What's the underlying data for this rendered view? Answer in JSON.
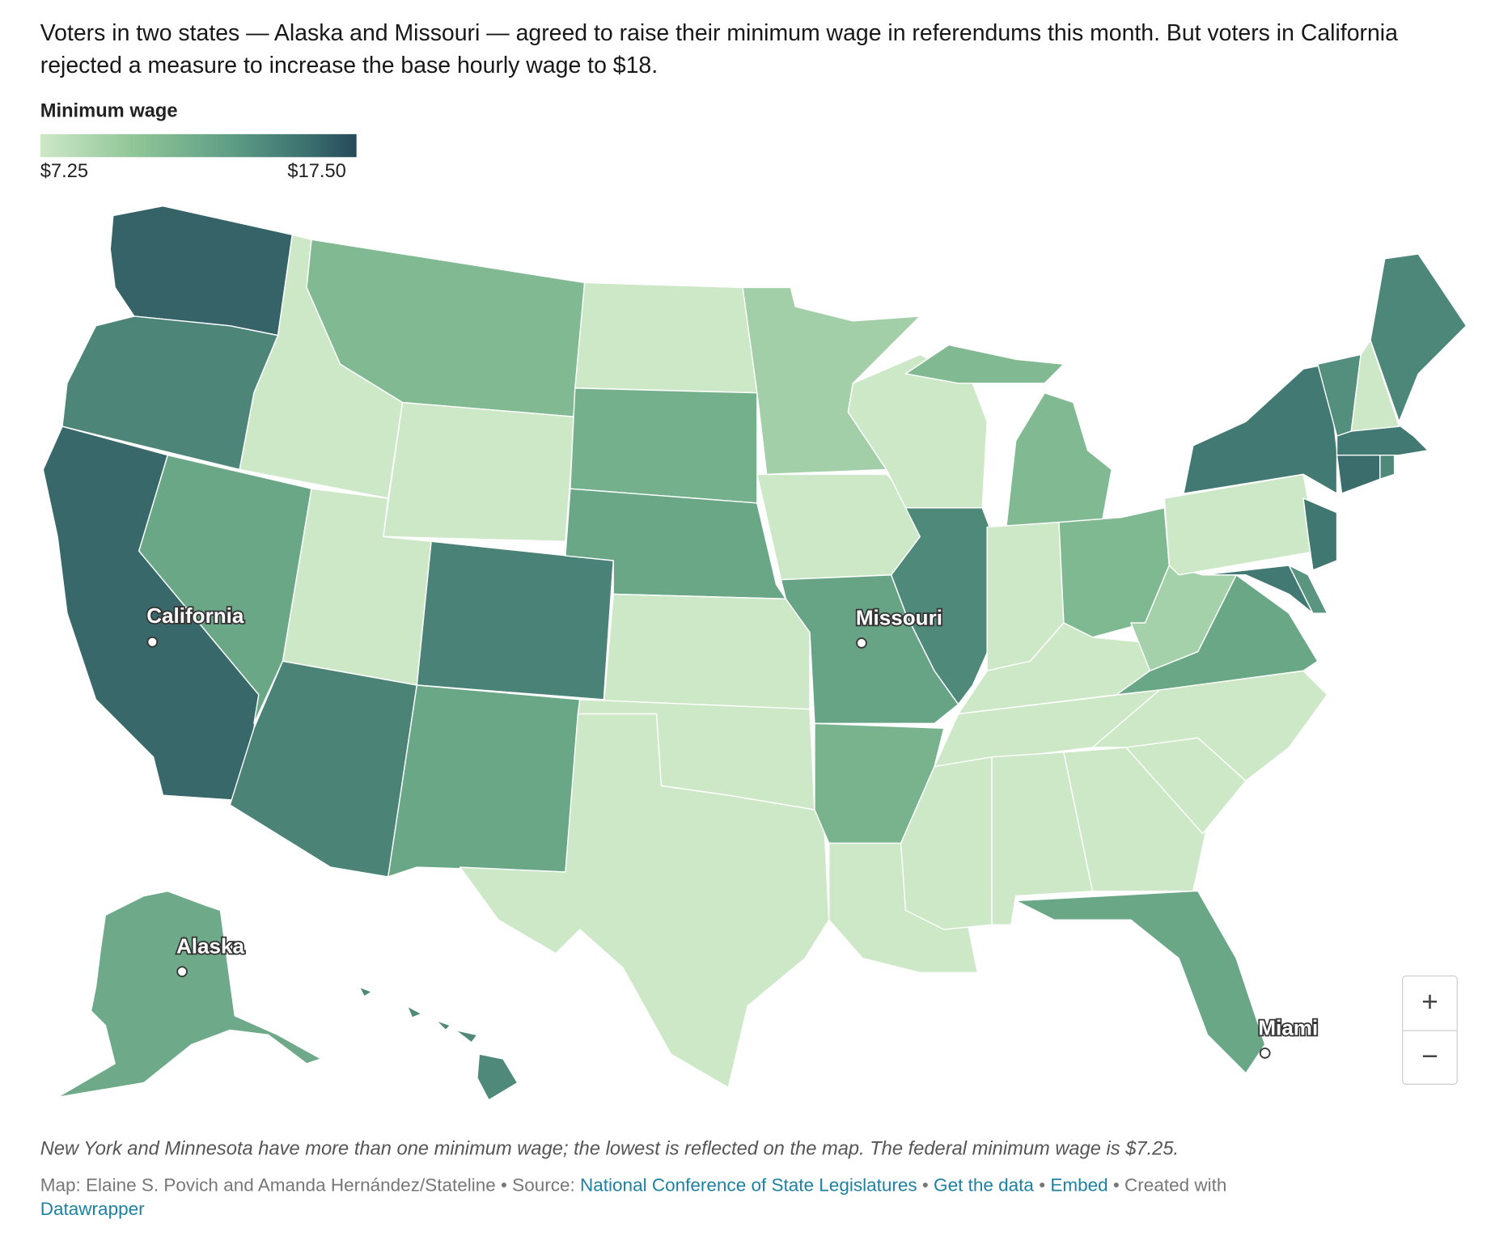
{
  "intro": "Voters in two states — Alaska and Missouri — agreed to raise their minimum wage in referendums this month. But voters in California rejected a measure to increase the base hourly wage to $18.",
  "legend": {
    "title": "Minimum wage",
    "min_label": "$7.25",
    "max_label": "$17.50",
    "colors": [
      "#cde8c7",
      "#88c095",
      "#65a385",
      "#437a73",
      "#2a4f5d"
    ]
  },
  "map_data": {
    "type": "choropleth",
    "min": 7.25,
    "max": 17.5,
    "wages": {
      "WA": 16.28,
      "OR": 14.2,
      "CA": 16,
      "NV": 12,
      "ID": 7.25,
      "MT": 10.3,
      "WY": 7.25,
      "UT": 7.25,
      "CO": 14.42,
      "AZ": 14.35,
      "NM": 12,
      "ND": 7.25,
      "SD": 11.2,
      "NE": 12,
      "KS": 7.25,
      "OK": 7.25,
      "TX": 7.25,
      "MN": 8.85,
      "IA": 7.25,
      "MO": 12.3,
      "AR": 11,
      "LA": 7.25,
      "WI": 7.25,
      "IL": 14,
      "MI": 10.33,
      "IN": 7.25,
      "OH": 10.45,
      "KY": 7.25,
      "TN": 7.25,
      "MS": 7.25,
      "AL": 7.25,
      "GA": 7.25,
      "FL": 12,
      "SC": 7.25,
      "NC": 7.25,
      "VA": 12,
      "WV": 8.75,
      "PA": 7.25,
      "NY": 15,
      "NJ": 15.13,
      "DE": 13.25,
      "MD": 15,
      "CT": 15.69,
      "RI": 14,
      "MA": 15,
      "VT": 13.67,
      "NH": 7.25,
      "ME": 14.15,
      "AK": 11.73,
      "HI": 14
    }
  },
  "labels": {
    "california": "California",
    "missouri": "Missouri",
    "alaska": "Alaska",
    "miami": "Miami"
  },
  "zoom": {
    "in": "+",
    "out": "−"
  },
  "note": "New York and Minnesota have more than one minimum wage; the lowest is reflected on the map. The federal minimum wage is $7.25.",
  "credit": {
    "byline": "Map: Elaine S. Povich and Amanda Hernández/Stateline • Source: ",
    "source_link": "National Conference of State Legislatures",
    "sep1": " • ",
    "get_data": "Get the data",
    "sep2": " • ",
    "embed": "Embed",
    "created": "  • Created with ",
    "datawrapper": "Datawrapper"
  }
}
